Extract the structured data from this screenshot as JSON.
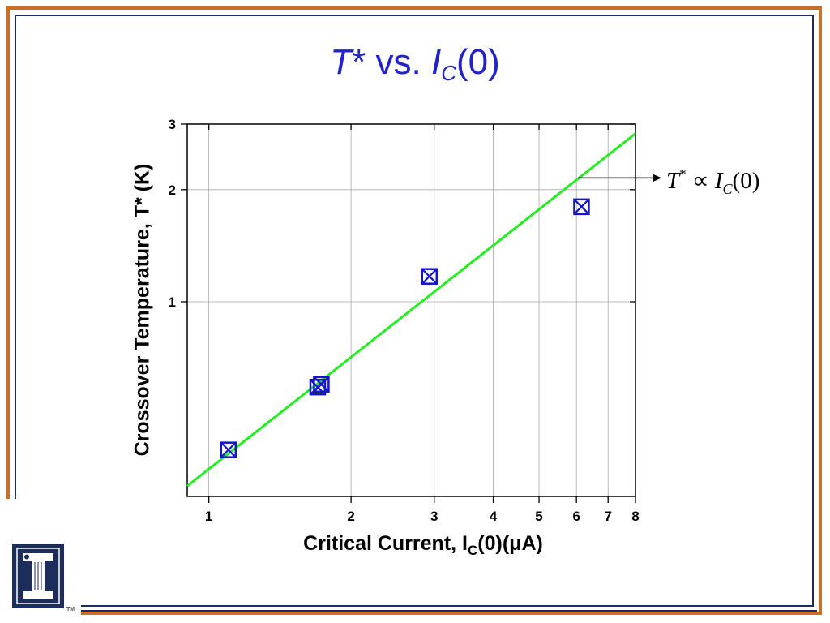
{
  "slide": {
    "title": {
      "t": "T",
      "star": "*",
      "vs": " vs. ",
      "i": "I",
      "sub": "C",
      "rest": "(0)"
    },
    "colors": {
      "frame_outer": "#c8702a",
      "frame_inner": "#1c2c5b",
      "title": "#2222cc",
      "data_marker": "#1515c8",
      "fit_line": "#22ee22",
      "logo_bg": "#1c2c5b",
      "logo_fg": "#ffffff"
    },
    "annotation": {
      "T": "T",
      "sup": "*",
      "prop": " ∝ ",
      "I": "I",
      "sub": "C",
      "arg": "(0)"
    },
    "logo_icon": "illinois-block-i-icon",
    "tm": "TM"
  },
  "chart_data": {
    "type": "scatter",
    "xlabel_parts": {
      "main": "Critical Current, I",
      "sub": "C",
      "rest": "(0)(μA)"
    },
    "ylabel": "Crossover Temperature, T* (K)",
    "xscale": "log",
    "yscale": "log",
    "xlim": [
      0.9,
      8
    ],
    "ylim": [
      0.3,
      3
    ],
    "xticks": [
      1,
      2,
      3,
      4,
      5,
      6,
      7,
      8
    ],
    "yticks": [
      1,
      2,
      3
    ],
    "grid": true,
    "series": [
      {
        "marker": "boxed-x",
        "points": [
          {
            "x": 1.1,
            "y": 0.4
          },
          {
            "x": 1.7,
            "y": 0.59
          },
          {
            "x": 1.73,
            "y": 0.6
          },
          {
            "x": 2.93,
            "y": 1.17
          },
          {
            "x": 6.15,
            "y": 1.8
          }
        ]
      }
    ],
    "fit_line": {
      "points": [
        {
          "x": 0.9,
          "y": 0.32
        },
        {
          "x": 8,
          "y": 2.83
        }
      ]
    },
    "annotation_point": {
      "x": 6.05,
      "y": 2.15
    }
  }
}
